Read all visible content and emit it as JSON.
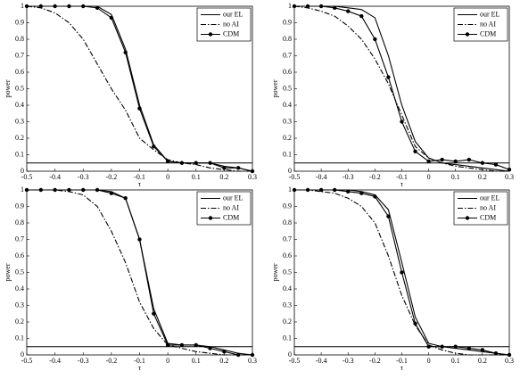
{
  "chart_data": [
    {
      "type": "line",
      "xlabel": "τ",
      "ylabel": "power",
      "x": [
        -0.5,
        -0.45,
        -0.4,
        -0.35,
        -0.3,
        -0.25,
        -0.2,
        -0.15,
        -0.1,
        -0.05,
        0,
        0.05,
        0.1,
        0.15,
        0.2,
        0.25,
        0.3
      ],
      "xlim": [
        -0.5,
        0.3
      ],
      "xticks": [
        -0.5,
        -0.4,
        -0.3,
        -0.2,
        -0.1,
        0,
        0.1,
        0.2,
        0.3
      ],
      "ylim": [
        0,
        1
      ],
      "yticks": [
        0,
        0.1,
        0.2,
        0.3,
        0.4,
        0.5,
        0.6,
        0.7,
        0.8,
        0.9,
        1
      ],
      "hline": 0.05,
      "legend": "upper-right",
      "series": [
        {
          "name": "our EL",
          "color": "#000000",
          "style": "solid",
          "values": [
            1,
            1,
            1,
            1,
            1,
            1,
            0.95,
            0.74,
            0.4,
            0.16,
            0.06,
            0.05,
            0.05,
            0.05,
            0.03,
            0.02,
            0
          ]
        },
        {
          "name": "no AI",
          "color": "#000000",
          "style": "dash-dot",
          "values": [
            1,
            0.99,
            0.96,
            0.9,
            0.8,
            0.65,
            0.5,
            0.37,
            0.2,
            0.13,
            0.07,
            0.05,
            0.04,
            0.02,
            0.01,
            0,
            0
          ]
        },
        {
          "name": "CDM",
          "color": "#000000",
          "style": "solid",
          "marker": "circle",
          "values": [
            1,
            1,
            1,
            1,
            1,
            0.99,
            0.93,
            0.72,
            0.38,
            0.15,
            0.06,
            0.05,
            0.05,
            0.05,
            0.02,
            0.02,
            0
          ]
        }
      ]
    },
    {
      "type": "line",
      "xlabel": "τ",
      "ylabel": "power",
      "x": [
        -0.5,
        -0.45,
        -0.4,
        -0.35,
        -0.3,
        -0.25,
        -0.2,
        -0.15,
        -0.1,
        -0.05,
        0,
        0.05,
        0.1,
        0.15,
        0.2,
        0.25,
        0.3
      ],
      "xlim": [
        -0.5,
        0.3
      ],
      "xticks": [
        -0.5,
        -0.4,
        -0.3,
        -0.2,
        -0.1,
        0,
        0.1,
        0.2,
        0.3
      ],
      "ylim": [
        0,
        1
      ],
      "yticks": [
        0,
        0.1,
        0.2,
        0.3,
        0.4,
        0.5,
        0.6,
        0.7,
        0.8,
        0.9,
        1
      ],
      "hline": 0.05,
      "legend": "upper-right",
      "series": [
        {
          "name": "our EL",
          "color": "#000000",
          "style": "solid",
          "values": [
            1,
            1,
            1,
            1,
            0.99,
            0.98,
            0.93,
            0.7,
            0.4,
            0.18,
            0.08,
            0.05,
            0.04,
            0.03,
            0.02,
            0.01,
            0
          ]
        },
        {
          "name": "no AI",
          "color": "#000000",
          "style": "dash-dot",
          "values": [
            1,
            0.99,
            0.97,
            0.94,
            0.88,
            0.8,
            0.68,
            0.53,
            0.34,
            0.15,
            0.08,
            0.05,
            0.03,
            0.02,
            0.01,
            0,
            0
          ]
        },
        {
          "name": "CDM",
          "color": "#000000",
          "style": "solid",
          "marker": "circle",
          "values": [
            1,
            1,
            1,
            0.99,
            0.97,
            0.94,
            0.8,
            0.57,
            0.3,
            0.12,
            0.06,
            0.07,
            0.06,
            0.07,
            0.05,
            0.04,
            0.01
          ]
        }
      ]
    },
    {
      "type": "line",
      "xlabel": "τ",
      "ylabel": "power",
      "x": [
        -0.5,
        -0.45,
        -0.4,
        -0.35,
        -0.3,
        -0.25,
        -0.2,
        -0.15,
        -0.1,
        -0.05,
        0,
        0.05,
        0.1,
        0.15,
        0.2,
        0.25,
        0.3
      ],
      "xlim": [
        -0.5,
        0.3
      ],
      "xticks": [
        -0.5,
        -0.4,
        -0.3,
        -0.2,
        -0.1,
        0,
        0.1,
        0.2,
        0.3
      ],
      "ylim": [
        0,
        1
      ],
      "yticks": [
        0,
        0.1,
        0.2,
        0.3,
        0.4,
        0.5,
        0.6,
        0.7,
        0.8,
        0.9,
        1
      ],
      "hline": 0.05,
      "legend": "upper-right",
      "series": [
        {
          "name": "our EL",
          "color": "#000000",
          "style": "solid",
          "values": [
            1,
            1,
            1,
            1,
            1,
            1,
            0.99,
            0.95,
            0.7,
            0.28,
            0.07,
            0.06,
            0.06,
            0.05,
            0.03,
            0.01,
            0
          ]
        },
        {
          "name": "no AI",
          "color": "#000000",
          "style": "dash-dot",
          "values": [
            1,
            1,
            1,
            0.99,
            0.97,
            0.9,
            0.75,
            0.56,
            0.32,
            0.16,
            0.06,
            0.04,
            0.02,
            0.01,
            0,
            0,
            0
          ]
        },
        {
          "name": "CDM",
          "color": "#000000",
          "style": "solid",
          "marker": "circle",
          "values": [
            1,
            1,
            1,
            1,
            1,
            1,
            0.98,
            0.95,
            0.7,
            0.25,
            0.06,
            0.06,
            0.06,
            0.04,
            0.02,
            0,
            0
          ]
        }
      ]
    },
    {
      "type": "line",
      "xlabel": "τ",
      "ylabel": "power",
      "x": [
        -0.5,
        -0.45,
        -0.4,
        -0.35,
        -0.3,
        -0.25,
        -0.2,
        -0.15,
        -0.1,
        -0.05,
        0,
        0.05,
        0.1,
        0.15,
        0.2,
        0.25,
        0.3
      ],
      "xlim": [
        -0.5,
        0.3
      ],
      "xticks": [
        -0.5,
        -0.4,
        -0.3,
        -0.2,
        -0.1,
        0,
        0.1,
        0.2,
        0.3
      ],
      "ylim": [
        0,
        1
      ],
      "yticks": [
        0,
        0.1,
        0.2,
        0.3,
        0.4,
        0.5,
        0.6,
        0.7,
        0.8,
        0.9,
        1
      ],
      "hline": 0.05,
      "legend": "upper-right",
      "series": [
        {
          "name": "our EL",
          "color": "#000000",
          "style": "solid",
          "values": [
            1,
            1,
            1,
            1,
            1,
            0.99,
            0.97,
            0.88,
            0.56,
            0.23,
            0.07,
            0.05,
            0.04,
            0.03,
            0.02,
            0.01,
            0
          ]
        },
        {
          "name": "no AI",
          "color": "#000000",
          "style": "dash-dot",
          "values": [
            1,
            1,
            0.99,
            0.98,
            0.95,
            0.9,
            0.8,
            0.6,
            0.36,
            0.18,
            0.06,
            0.03,
            0.01,
            0,
            0,
            0,
            0
          ]
        },
        {
          "name": "CDM",
          "color": "#000000",
          "style": "solid",
          "marker": "circle",
          "values": [
            1,
            1,
            1,
            1,
            0.99,
            0.98,
            0.96,
            0.84,
            0.5,
            0.19,
            0.05,
            0.05,
            0.05,
            0.04,
            0.03,
            0.01,
            0
          ]
        }
      ]
    }
  ]
}
